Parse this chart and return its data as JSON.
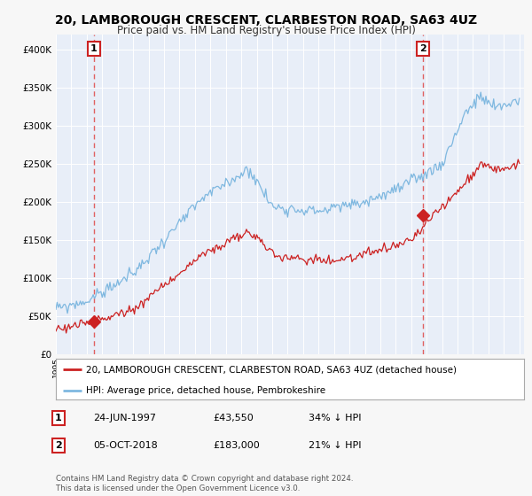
{
  "title": "20, LAMBOROUGH CRESCENT, CLARBESTON ROAD, SA63 4UZ",
  "subtitle": "Price paid vs. HM Land Registry's House Price Index (HPI)",
  "legend_line1": "20, LAMBOROUGH CRESCENT, CLARBESTON ROAD, SA63 4UZ (detached house)",
  "legend_line2": "HPI: Average price, detached house, Pembrokeshire",
  "annotation1_label": "1",
  "annotation1_date": "24-JUN-1997",
  "annotation1_price": "£43,550",
  "annotation1_hpi": "34% ↓ HPI",
  "annotation2_label": "2",
  "annotation2_date": "05-OCT-2018",
  "annotation2_price": "£183,000",
  "annotation2_hpi": "21% ↓ HPI",
  "footer": "Contains HM Land Registry data © Crown copyright and database right 2024.\nThis data is licensed under the Open Government Licence v3.0.",
  "hpi_color": "#7fb8e0",
  "price_color": "#cc2222",
  "dashed_line_color": "#e06060",
  "marker1_x": 1997.47,
  "marker1_y": 43550,
  "marker2_x": 2018.75,
  "marker2_y": 183000,
  "ylim": [
    0,
    420000
  ],
  "xlim": [
    1995.0,
    2025.3
  ],
  "background_color": "#f7f7f7",
  "plot_bg_color": "#e8eef8"
}
